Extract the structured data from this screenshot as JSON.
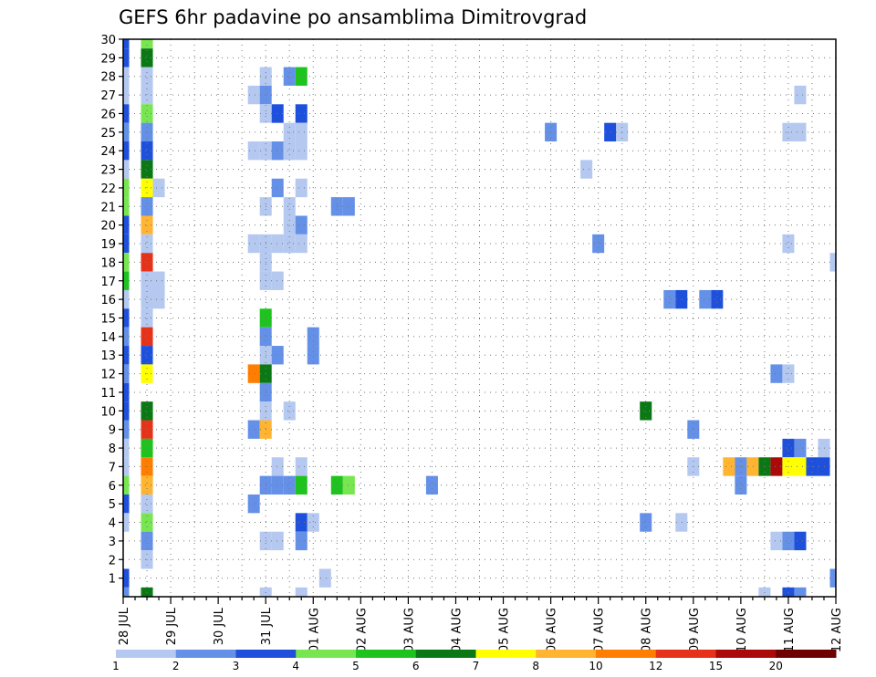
{
  "chart_data": {
    "type": "heatmap",
    "title": "GEFS 6hr padavine po ansamblima Dimitrovgrad",
    "xlabel": "",
    "ylabel": "",
    "x_ticks": [
      "28 JUL",
      "29 JUL",
      "30 JUL",
      "31 JUL",
      "01 AUG",
      "02 AUG",
      "03 AUG",
      "04 AUG",
      "05 AUG",
      "06 AUG",
      "07 AUG",
      "08 AUG",
      "09 AUG",
      "10 AUG",
      "11 AUG",
      "12 AUG"
    ],
    "y_ticks": [
      1,
      2,
      3,
      4,
      5,
      6,
      7,
      8,
      9,
      10,
      11,
      12,
      13,
      14,
      15,
      16,
      17,
      18,
      19,
      20,
      21,
      22,
      23,
      24,
      25,
      26,
      27,
      28,
      29,
      30
    ],
    "ylim": [
      0,
      30
    ],
    "x_step_hours": 6,
    "grid": true,
    "colorbar": {
      "labels": [
        "1",
        "2",
        "3",
        "4",
        "5",
        "6",
        "7",
        "8",
        "10",
        "12",
        "15",
        "20"
      ],
      "colors": [
        "#b4c8f0",
        "#6490e8",
        "#1e50dc",
        "#78e650",
        "#1ec31e",
        "#0a7814",
        "#ffff00",
        "#ffb432",
        "#ff7d00",
        "#e63219",
        "#aa0a0a",
        "#6e0000"
      ]
    },
    "cells": [
      [
        0,
        30,
        "#1e50dc"
      ],
      [
        0,
        29,
        "#1e50dc"
      ],
      [
        0,
        28,
        "#b4c8f0"
      ],
      [
        0,
        27,
        "#b4c8f0"
      ],
      [
        0,
        26,
        "#1e50dc"
      ],
      [
        0,
        25,
        "#6490e8"
      ],
      [
        0,
        24,
        "#1e50dc"
      ],
      [
        0,
        23,
        "#b4c8f0"
      ],
      [
        0,
        22,
        "#78e650"
      ],
      [
        0,
        21,
        "#78e650"
      ],
      [
        0,
        20,
        "#1e50dc"
      ],
      [
        0,
        19,
        "#1e50dc"
      ],
      [
        0,
        18,
        "#78e650"
      ],
      [
        0,
        17,
        "#1ec31e"
      ],
      [
        0,
        16,
        "#b4c8f0"
      ],
      [
        0,
        15,
        "#1e50dc"
      ],
      [
        0,
        14,
        "#6490e8"
      ],
      [
        0,
        13,
        "#1e50dc"
      ],
      [
        0,
        12,
        "#6490e8"
      ],
      [
        0,
        11,
        "#1e50dc"
      ],
      [
        0,
        10,
        "#1e50dc"
      ],
      [
        0,
        9,
        "#6490e8"
      ],
      [
        0,
        8,
        "#b4c8f0"
      ],
      [
        0,
        7,
        "#b4c8f0"
      ],
      [
        0,
        6,
        "#78e650"
      ],
      [
        0,
        5,
        "#1e50dc"
      ],
      [
        0,
        4,
        "#b4c8f0"
      ],
      [
        0,
        1,
        "#1e50dc"
      ],
      [
        0,
        0,
        "#6490e8"
      ],
      [
        2,
        30,
        "#78e650"
      ],
      [
        2,
        29,
        "#0a7814"
      ],
      [
        2,
        28,
        "#b4c8f0"
      ],
      [
        2,
        27,
        "#b4c8f0"
      ],
      [
        2,
        26,
        "#78e650"
      ],
      [
        2,
        25,
        "#6490e8"
      ],
      [
        2,
        24,
        "#1e50dc"
      ],
      [
        2,
        23,
        "#0a7814"
      ],
      [
        2,
        22,
        "#ffff00"
      ],
      [
        3,
        22,
        "#b4c8f0"
      ],
      [
        2,
        21,
        "#6490e8"
      ],
      [
        2,
        20,
        "#ffb432"
      ],
      [
        2,
        19,
        "#b4c8f0"
      ],
      [
        2,
        18,
        "#e63219"
      ],
      [
        2,
        17,
        "#b4c8f0"
      ],
      [
        3,
        17,
        "#b4c8f0"
      ],
      [
        2,
        16,
        "#b4c8f0"
      ],
      [
        3,
        16,
        "#b4c8f0"
      ],
      [
        2,
        15,
        "#b4c8f0"
      ],
      [
        2,
        14,
        "#e63219"
      ],
      [
        2,
        13,
        "#1e50dc"
      ],
      [
        2,
        12,
        "#ffff00"
      ],
      [
        2,
        10,
        "#0a7814"
      ],
      [
        2,
        9,
        "#e63219"
      ],
      [
        2,
        8,
        "#1ec31e"
      ],
      [
        2,
        7,
        "#ff7d00"
      ],
      [
        2,
        6,
        "#ffb432"
      ],
      [
        2,
        5,
        "#b4c8f0"
      ],
      [
        2,
        4,
        "#78e650"
      ],
      [
        2,
        3,
        "#6490e8"
      ],
      [
        2,
        2,
        "#b4c8f0"
      ],
      [
        2,
        0,
        "#0a7814"
      ],
      [
        12,
        28,
        "#b4c8f0"
      ],
      [
        14,
        28,
        "#6490e8"
      ],
      [
        15,
        28,
        "#1ec31e"
      ],
      [
        11,
        27,
        "#b4c8f0"
      ],
      [
        12,
        27,
        "#6490e8"
      ],
      [
        57,
        27,
        "#b4c8f0"
      ],
      [
        12,
        26,
        "#b4c8f0"
      ],
      [
        13,
        26,
        "#1e50dc"
      ],
      [
        15,
        26,
        "#1e50dc"
      ],
      [
        14,
        25,
        "#b4c8f0"
      ],
      [
        15,
        25,
        "#b4c8f0"
      ],
      [
        36,
        25,
        "#6490e8"
      ],
      [
        41,
        25,
        "#1e50dc"
      ],
      [
        42,
        25,
        "#b4c8f0"
      ],
      [
        56,
        25,
        "#b4c8f0"
      ],
      [
        57,
        25,
        "#b4c8f0"
      ],
      [
        11,
        24,
        "#b4c8f0"
      ],
      [
        12,
        24,
        "#b4c8f0"
      ],
      [
        13,
        24,
        "#6490e8"
      ],
      [
        14,
        24,
        "#b4c8f0"
      ],
      [
        15,
        24,
        "#b4c8f0"
      ],
      [
        39,
        23,
        "#b4c8f0"
      ],
      [
        13,
        22,
        "#6490e8"
      ],
      [
        15,
        22,
        "#b4c8f0"
      ],
      [
        12,
        21,
        "#b4c8f0"
      ],
      [
        14,
        21,
        "#b4c8f0"
      ],
      [
        18,
        21,
        "#6490e8"
      ],
      [
        19,
        21,
        "#6490e8"
      ],
      [
        14,
        20,
        "#b4c8f0"
      ],
      [
        15,
        20,
        "#6490e8"
      ],
      [
        11,
        19,
        "#b4c8f0"
      ],
      [
        12,
        19,
        "#b4c8f0"
      ],
      [
        13,
        19,
        "#b4c8f0"
      ],
      [
        14,
        19,
        "#b4c8f0"
      ],
      [
        15,
        19,
        "#b4c8f0"
      ],
      [
        40,
        19,
        "#6490e8"
      ],
      [
        56,
        19,
        "#b4c8f0"
      ],
      [
        12,
        18,
        "#b4c8f0"
      ],
      [
        60,
        18,
        "#b4c8f0"
      ],
      [
        12,
        17,
        "#b4c8f0"
      ],
      [
        13,
        17,
        "#b4c8f0"
      ],
      [
        46,
        16,
        "#6490e8"
      ],
      [
        47,
        16,
        "#1e50dc"
      ],
      [
        49,
        16,
        "#6490e8"
      ],
      [
        50,
        16,
        "#1e50dc"
      ],
      [
        12,
        15,
        "#1ec31e"
      ],
      [
        12,
        14,
        "#6490e8"
      ],
      [
        16,
        14,
        "#6490e8"
      ],
      [
        12,
        13,
        "#b4c8f0"
      ],
      [
        13,
        13,
        "#6490e8"
      ],
      [
        16,
        13,
        "#6490e8"
      ],
      [
        11,
        12,
        "#ff7d00"
      ],
      [
        12,
        12,
        "#0a7814"
      ],
      [
        55,
        12,
        "#6490e8"
      ],
      [
        56,
        12,
        "#b4c8f0"
      ],
      [
        12,
        11,
        "#6490e8"
      ],
      [
        12,
        10,
        "#b4c8f0"
      ],
      [
        14,
        10,
        "#b4c8f0"
      ],
      [
        44,
        10,
        "#0a7814"
      ],
      [
        11,
        9,
        "#6490e8"
      ],
      [
        12,
        9,
        "#ffb432"
      ],
      [
        48,
        9,
        "#6490e8"
      ],
      [
        56,
        8,
        "#1e50dc"
      ],
      [
        57,
        8,
        "#6490e8"
      ],
      [
        59,
        8,
        "#b4c8f0"
      ],
      [
        13,
        7,
        "#b4c8f0"
      ],
      [
        15,
        7,
        "#b4c8f0"
      ],
      [
        48,
        7,
        "#b4c8f0"
      ],
      [
        51,
        7,
        "#ffb432"
      ],
      [
        52,
        7,
        "#6490e8"
      ],
      [
        53,
        7,
        "#ffb432"
      ],
      [
        54,
        7,
        "#0a7814"
      ],
      [
        55,
        7,
        "#aa0a0a"
      ],
      [
        56,
        7,
        "#ffff00"
      ],
      [
        57,
        7,
        "#ffff00"
      ],
      [
        58,
        7,
        "#1e50dc"
      ],
      [
        59,
        7,
        "#1e50dc"
      ],
      [
        12,
        6,
        "#6490e8"
      ],
      [
        13,
        6,
        "#6490e8"
      ],
      [
        14,
        6,
        "#6490e8"
      ],
      [
        15,
        6,
        "#1ec31e"
      ],
      [
        18,
        6,
        "#1ec31e"
      ],
      [
        19,
        6,
        "#78e650"
      ],
      [
        26,
        6,
        "#6490e8"
      ],
      [
        52,
        6,
        "#6490e8"
      ],
      [
        11,
        5,
        "#6490e8"
      ],
      [
        15,
        4,
        "#1e50dc"
      ],
      [
        16,
        4,
        "#b4c8f0"
      ],
      [
        44,
        4,
        "#6490e8"
      ],
      [
        47,
        4,
        "#b4c8f0"
      ],
      [
        12,
        3,
        "#b4c8f0"
      ],
      [
        13,
        3,
        "#b4c8f0"
      ],
      [
        15,
        3,
        "#6490e8"
      ],
      [
        55,
        3,
        "#b4c8f0"
      ],
      [
        56,
        3,
        "#6490e8"
      ],
      [
        57,
        3,
        "#1e50dc"
      ],
      [
        17,
        1,
        "#b4c8f0"
      ],
      [
        60,
        1,
        "#6490e8"
      ],
      [
        12,
        0,
        "#b4c8f0"
      ],
      [
        15,
        0,
        "#b4c8f0"
      ],
      [
        54,
        0,
        "#b4c8f0"
      ],
      [
        56,
        0,
        "#1e50dc"
      ],
      [
        57,
        0,
        "#6490e8"
      ]
    ]
  }
}
